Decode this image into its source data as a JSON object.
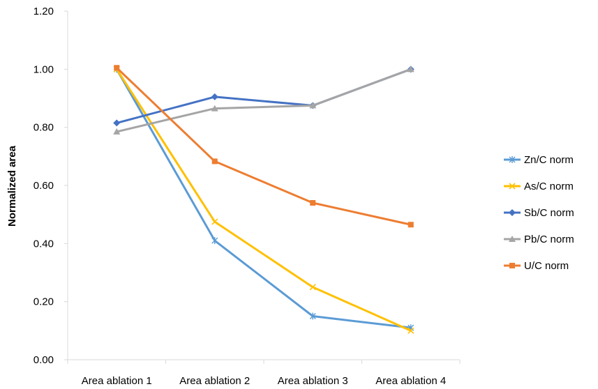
{
  "chart_data": {
    "type": "line",
    "title": "",
    "xlabel": "",
    "ylabel": "Normalized area",
    "categories": [
      "Area ablation 1",
      "Area ablation 2",
      "Area ablation 3",
      "Area ablation 4"
    ],
    "ylim": [
      0,
      1.2
    ],
    "yticks": [
      "0.00",
      "0.20",
      "0.40",
      "0.60",
      "0.80",
      "1.00",
      "1.20"
    ],
    "grid": false,
    "legend_position": "right",
    "series": [
      {
        "name": "Zn/C norm",
        "color": "#5b9bd5",
        "marker": "star",
        "values": [
          1.0,
          0.41,
          0.15,
          0.11
        ]
      },
      {
        "name": "As/C norm",
        "color": "#ffc000",
        "marker": "x",
        "values": [
          1.0,
          0.475,
          0.25,
          0.1
        ]
      },
      {
        "name": "Sb/C norm",
        "color": "#4472c4",
        "marker": "diamond",
        "values": [
          0.815,
          0.905,
          0.875,
          1.0
        ]
      },
      {
        "name": "Pb/C norm",
        "color": "#a5a5a5",
        "marker": "triangle",
        "values": [
          0.785,
          0.865,
          0.875,
          1.0
        ]
      },
      {
        "name": "U/C norm",
        "color": "#ed7d31",
        "marker": "square",
        "values": [
          1.005,
          0.683,
          0.54,
          0.465
        ]
      }
    ]
  }
}
